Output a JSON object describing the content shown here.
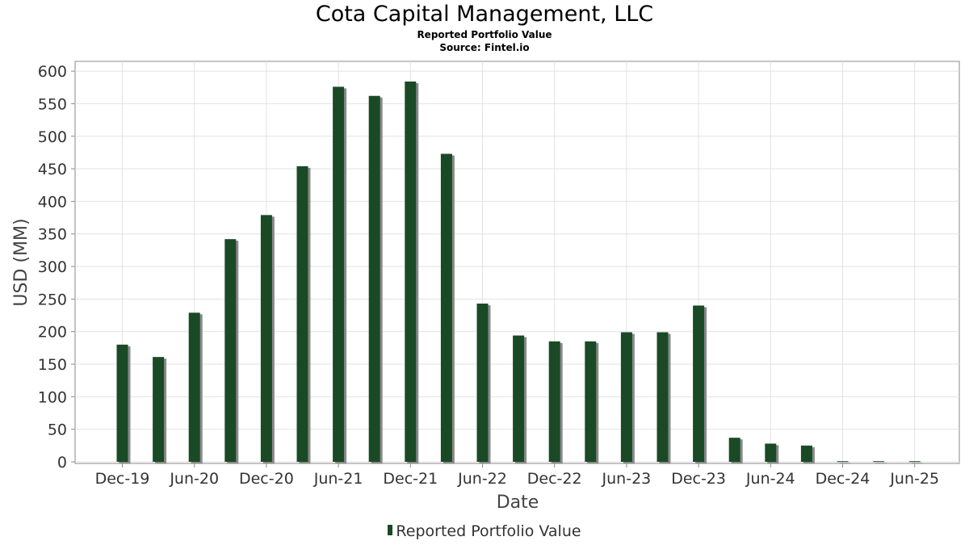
{
  "title": "Cota Capital Management, LLC",
  "subtitle": "Reported Portfolio Value",
  "source": "Source: Fintel.io",
  "chart_data": {
    "type": "bar",
    "title": "Cota Capital Management, LLC",
    "subtitle": "Reported Portfolio Value",
    "xlabel": "Date",
    "ylabel": "USD (MM)",
    "ylim": [
      0,
      610
    ],
    "yticks": [
      0,
      50,
      100,
      150,
      200,
      250,
      300,
      350,
      400,
      450,
      500,
      550,
      600
    ],
    "xtick_labels": [
      "Dec-19",
      "Jun-20",
      "Dec-20",
      "Jun-21",
      "Dec-21",
      "Jun-22",
      "Dec-22",
      "Jun-23",
      "Dec-23",
      "Jun-24",
      "Dec-24",
      "Jun-25"
    ],
    "categories": [
      "Dec-19",
      "Mar-20",
      "Jun-20",
      "Sep-20",
      "Dec-20",
      "Mar-21",
      "Jun-21",
      "Sep-21",
      "Dec-21",
      "Mar-22",
      "Jun-22",
      "Sep-22",
      "Dec-22",
      "Mar-23",
      "Jun-23",
      "Sep-23",
      "Dec-23",
      "Mar-24",
      "Jun-24",
      "Sep-24",
      "Dec-24",
      "Mar-25",
      "Jun-25"
    ],
    "series": [
      {
        "name": "Reported Portfolio Value",
        "values": [
          180,
          161,
          229,
          342,
          379,
          454,
          576,
          562,
          584,
          473,
          243,
          194,
          185,
          185,
          199,
          199,
          240,
          37,
          28,
          25,
          1,
          1,
          1
        ],
        "color": "#1a4a25"
      }
    ],
    "grid": true,
    "legend": "bottom-center"
  }
}
